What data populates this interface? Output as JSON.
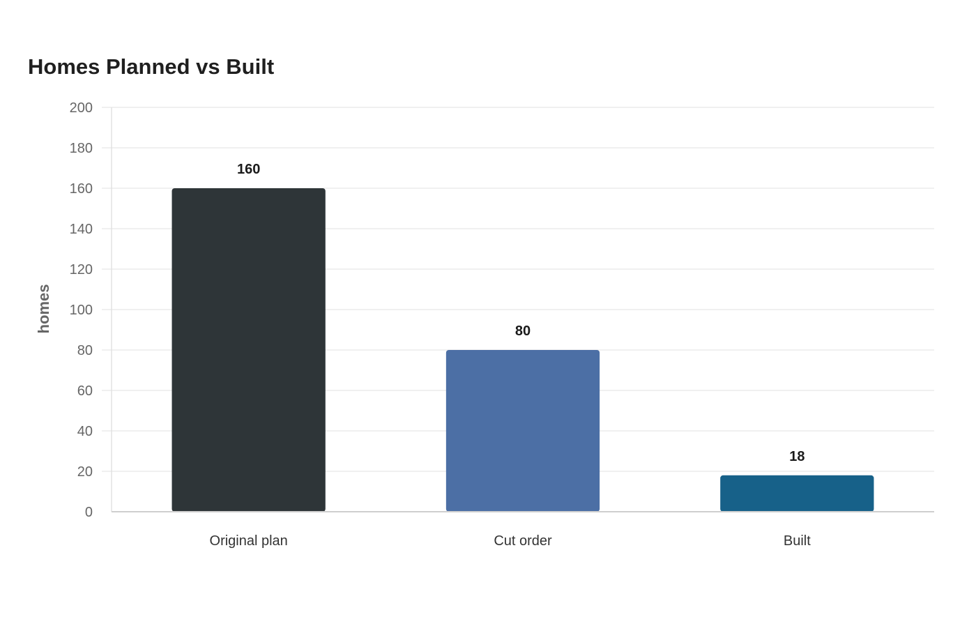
{
  "chart_data": {
    "type": "bar",
    "title": "Homes Planned vs Built",
    "xlabel": "",
    "ylabel": "homes",
    "categories": [
      "Original plan",
      "Cut order",
      "Built"
    ],
    "values": [
      160,
      80,
      18
    ],
    "colors": [
      "#2e3538",
      "#4c6fa5",
      "#176189"
    ],
    "ylim": [
      0,
      200
    ],
    "yticks": [
      0,
      20,
      40,
      60,
      80,
      100,
      120,
      140,
      160,
      180,
      200
    ],
    "grid": true,
    "data_labels": true,
    "legend": "none"
  }
}
